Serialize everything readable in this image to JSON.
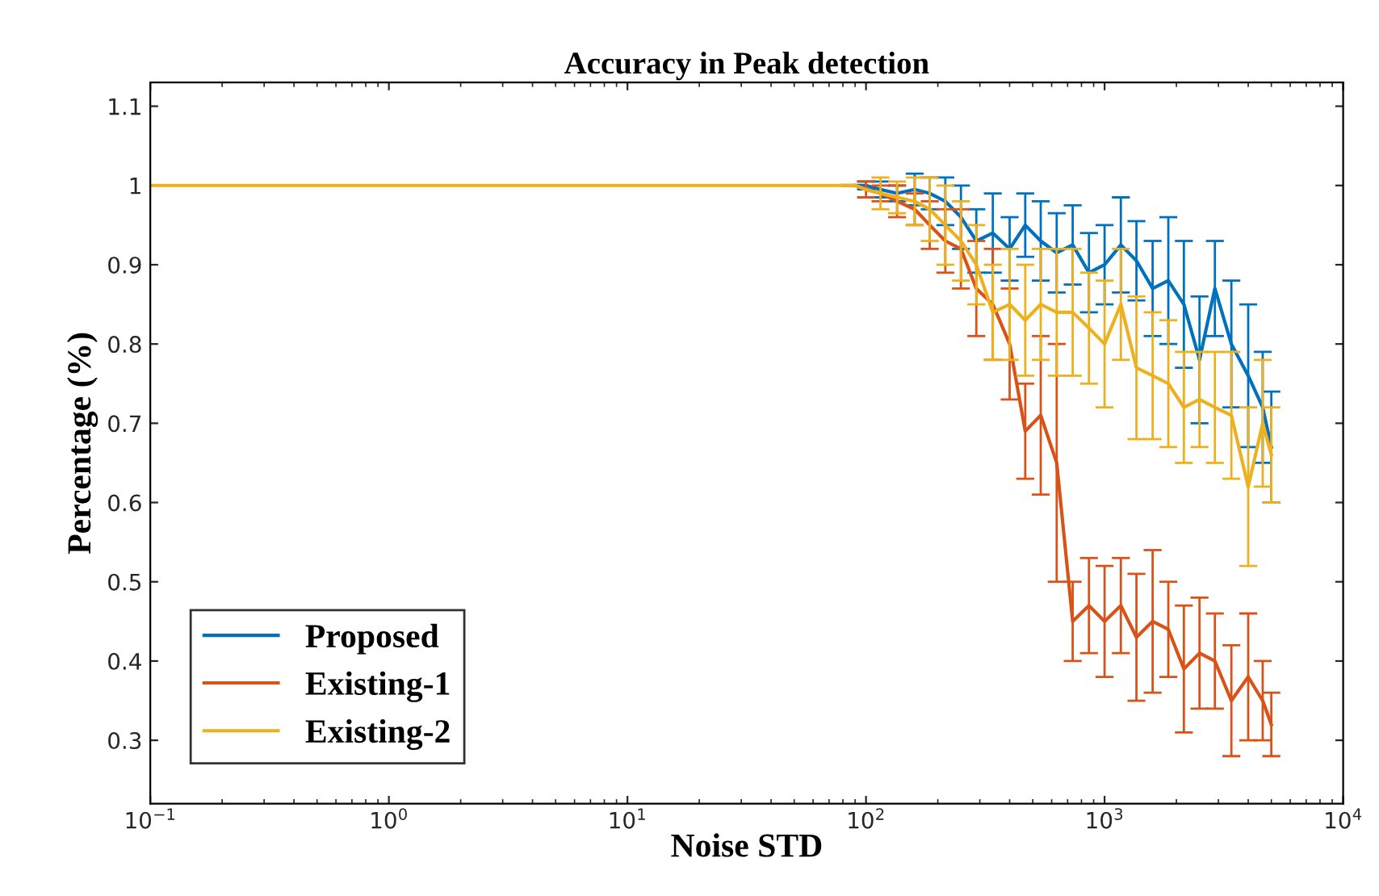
{
  "chart_data": {
    "type": "line",
    "title": "Accuracy in Peak detection",
    "xlabel": "Noise STD",
    "ylabel": "Percentage (%)",
    "log": "x",
    "grid": false,
    "legend": "bottom left",
    "marker": "none",
    "line_style": "solid",
    "xlim": [
      0.1,
      10000
    ],
    "ylim": [
      0.22,
      1.13
    ],
    "xticks": [
      {
        "value": 0.1,
        "label": "10$^{−1}$"
      },
      {
        "value": 1,
        "label": "10$^{0}$"
      },
      {
        "value": 10,
        "label": "10$^{1}$"
      },
      {
        "value": 100,
        "label": "10$^{2}$"
      },
      {
        "value": 1000,
        "label": "10$^{3}$"
      },
      {
        "value": 10000,
        "label": "10$^{4}$"
      }
    ],
    "yticks": [
      0.3,
      0.4,
      0.5,
      0.6,
      0.7,
      0.8,
      0.9,
      1,
      1.1
    ],
    "x": [
      0.1,
      60,
      70,
      80,
      90,
      100,
      115,
      135,
      160,
      185,
      215,
      250,
      290,
      340,
      400,
      465,
      540,
      630,
      735,
      860,
      1000,
      1170,
      1360,
      1590,
      1850,
      2150,
      2500,
      2900,
      3400,
      4000,
      4600,
      5000
    ],
    "series": [
      {
        "name": "Proposed",
        "color": "#0072bd",
        "values": [
          null,
          null,
          null,
          null,
          1,
          1,
          0.995,
          0.99,
          0.995,
          0.99,
          0.98,
          0.96,
          0.93,
          0.94,
          0.92,
          0.95,
          0.93,
          0.915,
          0.925,
          0.89,
          0.9,
          0.925,
          0.905,
          0.87,
          0.88,
          0.85,
          0.78,
          0.87,
          0.8,
          0.76,
          0.72,
          0.67
        ],
        "errors": [
          null,
          null,
          null,
          null,
          null,
          0.005,
          0.01,
          0.01,
          0.02,
          0.02,
          0.03,
          0.04,
          0.04,
          0.05,
          0.04,
          0.04,
          0.05,
          0.05,
          0.05,
          0.05,
          0.05,
          0.06,
          0.05,
          0.06,
          0.08,
          0.08,
          0.08,
          0.06,
          0.08,
          0.09,
          0.07,
          0.07
        ]
      },
      {
        "name": "Existing-1",
        "color": "#d95319",
        "values": [
          null,
          null,
          null,
          1,
          1,
          0.995,
          0.99,
          0.98,
          0.97,
          0.95,
          0.93,
          0.92,
          0.87,
          0.85,
          0.8,
          0.69,
          0.71,
          0.65,
          0.45,
          0.47,
          0.45,
          0.47,
          0.43,
          0.45,
          0.44,
          0.39,
          0.41,
          0.4,
          0.35,
          0.38,
          0.35,
          0.32
        ],
        "errors": [
          null,
          null,
          null,
          null,
          null,
          0.01,
          0.01,
          0.02,
          0.02,
          0.03,
          0.04,
          0.05,
          0.06,
          0.07,
          0.07,
          0.06,
          0.1,
          0.15,
          0.05,
          0.06,
          0.07,
          0.06,
          0.08,
          0.09,
          0.06,
          0.08,
          0.07,
          0.06,
          0.07,
          0.08,
          0.05,
          0.04
        ]
      },
      {
        "name": "Existing-2",
        "color": "#edb120",
        "values": [
          1,
          1,
          1,
          1,
          1,
          0.995,
          0.99,
          0.985,
          0.98,
          0.97,
          0.95,
          0.93,
          0.9,
          0.84,
          0.85,
          0.83,
          0.85,
          0.84,
          0.84,
          0.82,
          0.8,
          0.85,
          0.77,
          0.76,
          0.75,
          0.72,
          0.73,
          0.72,
          0.71,
          0.62,
          0.7,
          0.66
        ],
        "errors": [
          null,
          null,
          null,
          null,
          null,
          null,
          0.02,
          0.02,
          0.03,
          0.04,
          0.05,
          0.05,
          0.05,
          0.06,
          0.07,
          0.07,
          0.07,
          0.08,
          0.08,
          0.07,
          0.08,
          0.07,
          0.09,
          0.08,
          0.08,
          0.07,
          0.06,
          0.07,
          0.08,
          0.1,
          0.08,
          0.06
        ]
      }
    ]
  }
}
